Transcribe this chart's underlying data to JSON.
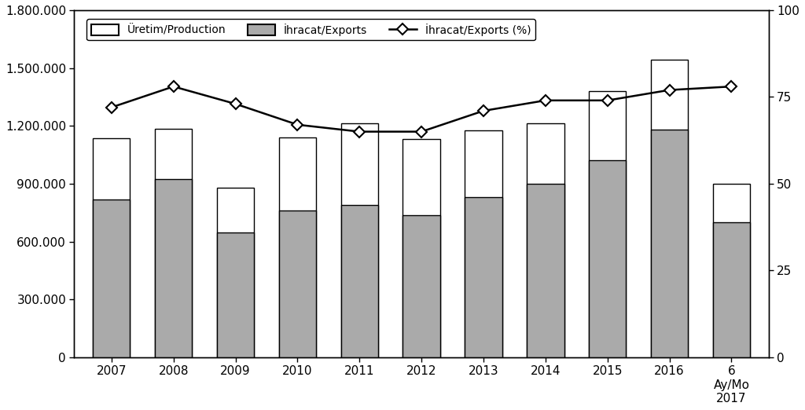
{
  "years": [
    "2007",
    "2008",
    "2009",
    "2010",
    "2011",
    "2012",
    "2013",
    "2014",
    "2015",
    "2016",
    "6\nAy/Mo\n2017"
  ],
  "production": [
    1135000,
    1185000,
    880000,
    1140000,
    1215000,
    1130000,
    1175000,
    1215000,
    1380000,
    1545000,
    900000
  ],
  "exports": [
    820000,
    925000,
    645000,
    760000,
    790000,
    735000,
    830000,
    900000,
    1020000,
    1180000,
    700000
  ],
  "export_pct": [
    72,
    78,
    73,
    67,
    65,
    65,
    71,
    74,
    74,
    77,
    78
  ],
  "bar_color_production": "#ffffff",
  "bar_color_exports": "#aaaaaa",
  "bar_edgecolor": "#000000",
  "line_color": "#000000",
  "marker": "D",
  "marker_facecolor": "#ffffff",
  "ylim_left": [
    0,
    1800000
  ],
  "ylim_right": [
    0,
    100
  ],
  "yticks_left": [
    0,
    300000,
    600000,
    900000,
    1200000,
    1500000,
    1800000
  ],
  "ytick_labels_left": [
    "0",
    "300.000",
    "600.000",
    "900.000",
    "1.200.000",
    "1.500.000",
    "1.800.000"
  ],
  "yticks_right": [
    0,
    25,
    50,
    75,
    100
  ],
  "legend_labels": [
    "Üretim/Production",
    "İhracat/Exports",
    "İhracat/Exports (%)"
  ],
  "figsize": [
    10.24,
    5.22
  ],
  "dpi": 100,
  "background_color": "#ffffff",
  "bar_width": 0.6,
  "fontsize": 11,
  "legend_fontsize": 10,
  "marker_size": 7
}
